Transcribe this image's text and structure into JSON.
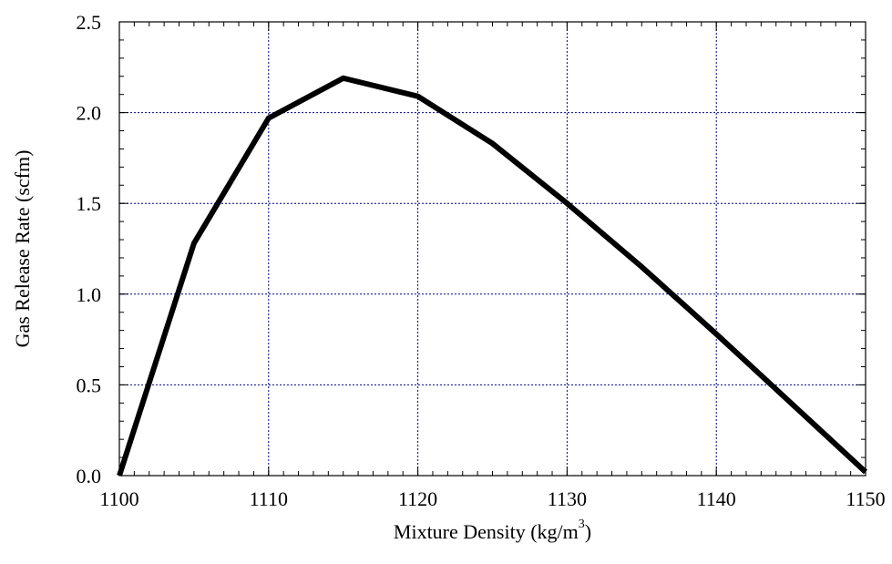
{
  "chart_data": {
    "type": "line",
    "title": "",
    "xlabel_main": "Mixture Density (kg/m",
    "xlabel_sup": "3",
    "xlabel_close": ")",
    "ylabel": "Gas Release Rate  (scfm)",
    "xlim": [
      1100,
      1150
    ],
    "ylim": [
      0,
      2.5
    ],
    "x_ticks": [
      1100,
      1110,
      1120,
      1130,
      1140,
      1150
    ],
    "x_tick_labels": [
      "1100",
      "1110",
      "1120",
      "1130",
      "1140",
      "1150"
    ],
    "y_ticks": [
      0,
      0.5,
      1.0,
      1.5,
      2.0,
      2.5
    ],
    "y_tick_labels": [
      "0.0",
      "0.5",
      "1.0",
      "1.5",
      "2.0",
      "2.5"
    ],
    "x_minor_step": 1,
    "y_minor_step": 0.1,
    "grid": true,
    "series": [
      {
        "x": [
          1100,
          1105,
          1110,
          1115,
          1120,
          1125,
          1130,
          1135,
          1140,
          1145,
          1150
        ],
        "y": [
          0.0,
          1.28,
          1.97,
          2.19,
          2.09,
          1.83,
          1.5,
          1.15,
          0.78,
          0.4,
          0.02
        ],
        "color": "#000000"
      }
    ]
  }
}
